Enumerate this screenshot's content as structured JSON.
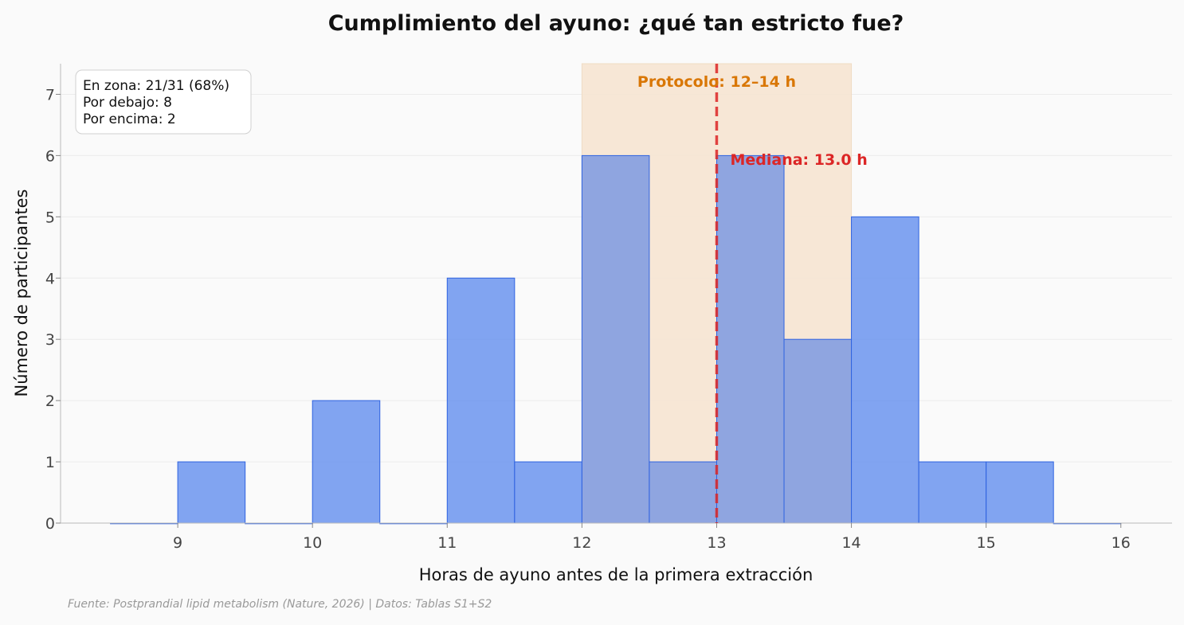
{
  "chart_data": {
    "type": "bar",
    "title": "Cumplimiento del ayuno: ¿qué tan estricto fue?",
    "xlabel": "Horas de ayuno antes de la primera extracción",
    "ylabel": "Número de participantes",
    "xlim": [
      8.13,
      16.38
    ],
    "ylim": [
      0,
      7.5
    ],
    "x_ticks": [
      9,
      10,
      11,
      12,
      13,
      14,
      15,
      16
    ],
    "y_ticks": [
      0,
      1,
      2,
      3,
      4,
      5,
      6,
      7
    ],
    "bin_width": 0.5,
    "bins": [
      {
        "start": 8.5,
        "count": 0
      },
      {
        "start": 9.0,
        "count": 1
      },
      {
        "start": 9.5,
        "count": 0
      },
      {
        "start": 10.0,
        "count": 2
      },
      {
        "start": 10.5,
        "count": 0
      },
      {
        "start": 11.0,
        "count": 4
      },
      {
        "start": 11.5,
        "count": 1
      },
      {
        "start": 12.0,
        "count": 6
      },
      {
        "start": 12.5,
        "count": 1
      },
      {
        "start": 13.0,
        "count": 6
      },
      {
        "start": 13.5,
        "count": 3
      },
      {
        "start": 14.0,
        "count": 5
      },
      {
        "start": 14.5,
        "count": 1
      },
      {
        "start": 15.0,
        "count": 1
      },
      {
        "start": 15.5,
        "count": 0
      }
    ],
    "protocol_zone": {
      "from": 12,
      "to": 14,
      "label": "Protocolo: 12–14 h",
      "color": "#d97706"
    },
    "median": {
      "value": 13.0,
      "label": "Mediana: 13.0 h",
      "color": "#dc2626"
    },
    "summary_box": [
      "En zona: 21/31 (68%)",
      "Por debajo: 8",
      "Por encima: 2"
    ],
    "grid": true,
    "colors": {
      "bar_fill": "#6b94ee",
      "bar_fill_zone": "#7c99e2",
      "bar_stroke": "#2f63e0",
      "zone_fill": "#f7e6d3"
    },
    "source": "Fuente: Postprandial lipid metabolism (Nature, 2026) | Datos: Tablas S1+S2"
  }
}
